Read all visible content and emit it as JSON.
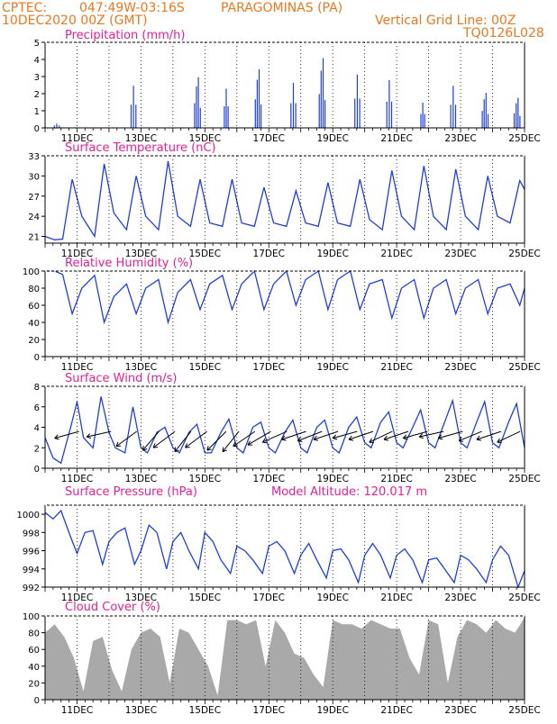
{
  "header": {
    "source": "CPTEC:",
    "coords": "047:49W-03:16S",
    "station": "PARAGOMINAS (PA)",
    "init": "10DEC2020 00Z (GMT)",
    "grid_note": "Vertical Grid Line: 00Z",
    "code": "TQ0126L028"
  },
  "colors": {
    "header": "#e87820",
    "title": "#e0209a",
    "series": "#1f3fd8",
    "cloud": "#a9a9a9",
    "arrow": "#000000"
  },
  "model_altitude": "Model Altitude: 120.017 m",
  "x_ticks": [
    "11DEC",
    "13DEC",
    "15DEC",
    "17DEC",
    "19DEC",
    "21DEC",
    "23DEC",
    "25DEC"
  ],
  "chart_data": [
    {
      "type": "bar",
      "title": "Precipitation (mm/h)",
      "ylim": [
        0,
        5
      ],
      "yticks": [
        "0",
        "1",
        "2",
        "3",
        "4",
        "5"
      ],
      "x_start_day": 10,
      "x_end_day": 25,
      "events": [
        {
          "day": 10.35,
          "peak": 0.3,
          "width": 0.15
        },
        {
          "day": 12.75,
          "peak": 3.0,
          "width": 0.15
        },
        {
          "day": 14.75,
          "peak": 3.2,
          "width": 0.18
        },
        {
          "day": 15.65,
          "peak": 2.8,
          "width": 0.12
        },
        {
          "day": 16.65,
          "peak": 3.7,
          "width": 0.18
        },
        {
          "day": 17.75,
          "peak": 3.2,
          "width": 0.15
        },
        {
          "day": 18.65,
          "peak": 4.4,
          "width": 0.18
        },
        {
          "day": 19.75,
          "peak": 3.8,
          "width": 0.15
        },
        {
          "day": 20.75,
          "peak": 3.4,
          "width": 0.15
        },
        {
          "day": 21.8,
          "peak": 1.8,
          "width": 0.12
        },
        {
          "day": 22.75,
          "peak": 3.0,
          "width": 0.15
        },
        {
          "day": 23.75,
          "peak": 2.2,
          "width": 0.18
        },
        {
          "day": 24.75,
          "peak": 1.9,
          "width": 0.18
        }
      ]
    },
    {
      "type": "line",
      "title": "Surface Temperature (nC)",
      "ylim": [
        20,
        33
      ],
      "yticks": [
        "21",
        "24",
        "27",
        "30",
        "33"
      ],
      "x": [
        10.0,
        10.3,
        10.55,
        10.85,
        11.15,
        11.55,
        11.85,
        12.15,
        12.55,
        12.85,
        13.15,
        13.55,
        13.85,
        14.15,
        14.55,
        14.85,
        15.15,
        15.55,
        15.85,
        16.15,
        16.55,
        16.85,
        17.15,
        17.55,
        17.85,
        18.15,
        18.55,
        18.85,
        19.15,
        19.55,
        19.85,
        20.15,
        20.55,
        20.85,
        21.15,
        21.55,
        21.85,
        22.15,
        22.55,
        22.85,
        23.15,
        23.55,
        23.85,
        24.15,
        24.55,
        24.85,
        25.0
      ],
      "values": [
        21.0,
        20.5,
        20.6,
        29.5,
        24.0,
        21.0,
        31.8,
        24.5,
        22.0,
        30.0,
        24.0,
        22.0,
        32.2,
        24.0,
        22.5,
        29.5,
        23.0,
        22.5,
        29.5,
        23.0,
        22.5,
        28.3,
        23.0,
        22.5,
        27.8,
        23.0,
        22.5,
        29.0,
        23.0,
        22.5,
        29.5,
        23.5,
        22.0,
        30.8,
        24.0,
        22.0,
        31.5,
        24.0,
        22.0,
        31.0,
        24.0,
        22.0,
        30.0,
        24.0,
        23.0,
        29.3,
        28.0
      ]
    },
    {
      "type": "line",
      "title": "Relative Humidity (%)",
      "ylim": [
        0,
        100
      ],
      "yticks": [
        "0",
        "20",
        "40",
        "60",
        "80",
        "100"
      ],
      "x": [
        10.0,
        10.3,
        10.55,
        10.85,
        11.15,
        11.55,
        11.85,
        12.15,
        12.55,
        12.85,
        13.15,
        13.55,
        13.85,
        14.15,
        14.55,
        14.85,
        15.15,
        15.55,
        15.85,
        16.15,
        16.55,
        16.85,
        17.15,
        17.55,
        17.85,
        18.15,
        18.55,
        18.85,
        19.15,
        19.55,
        19.85,
        20.15,
        20.55,
        20.85,
        21.15,
        21.55,
        21.85,
        22.15,
        22.55,
        22.85,
        23.15,
        23.55,
        23.85,
        24.15,
        24.55,
        24.85,
        25.0
      ],
      "values": [
        100,
        100,
        96,
        50,
        80,
        95,
        40,
        70,
        85,
        50,
        80,
        90,
        40,
        75,
        90,
        55,
        85,
        95,
        55,
        85,
        100,
        55,
        85,
        100,
        60,
        90,
        100,
        55,
        90,
        100,
        55,
        85,
        90,
        45,
        80,
        90,
        45,
        80,
        90,
        50,
        80,
        90,
        50,
        80,
        85,
        60,
        80
      ]
    },
    {
      "type": "line",
      "title": "Surface Wind (m/s)",
      "ylim": [
        0,
        8
      ],
      "yticks": [
        "0",
        "2",
        "4",
        "6",
        "8"
      ],
      "x": [
        10.0,
        10.25,
        10.5,
        10.8,
        11.0,
        11.2,
        11.5,
        11.75,
        12.0,
        12.2,
        12.5,
        12.75,
        13.0,
        13.2,
        13.5,
        13.75,
        14.0,
        14.2,
        14.5,
        14.75,
        15.0,
        15.2,
        15.5,
        15.75,
        16.0,
        16.2,
        16.5,
        16.75,
        17.0,
        17.2,
        17.5,
        17.75,
        18.0,
        18.2,
        18.5,
        18.75,
        19.0,
        19.2,
        19.5,
        19.75,
        20.0,
        20.2,
        20.5,
        20.75,
        21.0,
        21.2,
        21.5,
        21.75,
        22.0,
        22.2,
        22.5,
        22.75,
        23.0,
        23.2,
        23.5,
        23.75,
        24.0,
        24.2,
        24.5,
        24.75,
        25.0
      ],
      "values": [
        3.0,
        1.0,
        0.5,
        4.0,
        6.5,
        3.0,
        2.0,
        7.0,
        3.5,
        2.0,
        1.5,
        6.0,
        2.0,
        1.5,
        3.5,
        4.0,
        2.0,
        1.5,
        3.5,
        4.3,
        1.5,
        1.5,
        3.5,
        4.8,
        2.0,
        1.5,
        4.0,
        4.5,
        2.0,
        1.5,
        3.5,
        4.7,
        2.0,
        1.5,
        4.0,
        4.7,
        2.0,
        1.5,
        4.0,
        5.0,
        2.5,
        2.0,
        4.5,
        5.5,
        2.5,
        2.0,
        4.0,
        5.7,
        2.5,
        2.0,
        4.5,
        6.6,
        2.5,
        2.0,
        4.5,
        6.5,
        2.5,
        2.0,
        4.5,
        6.3,
        2.0
      ],
      "vectors": [
        {
          "day": 10.5,
          "dx": -0.9,
          "dy": 0.25
        },
        {
          "day": 11.5,
          "dx": -0.9,
          "dy": 0.2
        },
        {
          "day": 12.3,
          "dx": -0.75,
          "dy": 0.55
        },
        {
          "day": 13.0,
          "dx": -0.6,
          "dy": 0.7
        },
        {
          "day": 13.5,
          "dx": -0.8,
          "dy": 0.6
        },
        {
          "day": 14.0,
          "dx": -0.6,
          "dy": 0.75
        },
        {
          "day": 14.5,
          "dx": -0.8,
          "dy": 0.6
        },
        {
          "day": 15.1,
          "dx": -0.7,
          "dy": 0.7
        },
        {
          "day": 15.5,
          "dx": -0.6,
          "dy": 0.75
        },
        {
          "day": 16.0,
          "dx": -0.8,
          "dy": 0.55
        },
        {
          "day": 16.5,
          "dx": -0.85,
          "dy": 0.5
        },
        {
          "day": 17.0,
          "dx": -0.9,
          "dy": 0.4
        },
        {
          "day": 17.6,
          "dx": -0.9,
          "dy": 0.3
        },
        {
          "day": 18.1,
          "dx": -0.9,
          "dy": 0.35
        },
        {
          "day": 18.6,
          "dx": -0.9,
          "dy": 0.3
        },
        {
          "day": 19.2,
          "dx": -0.9,
          "dy": 0.25
        },
        {
          "day": 19.7,
          "dx": -0.9,
          "dy": 0.3
        },
        {
          "day": 20.3,
          "dx": -0.85,
          "dy": 0.4
        },
        {
          "day": 20.8,
          "dx": -0.9,
          "dy": 0.3
        },
        {
          "day": 21.4,
          "dx": -0.9,
          "dy": 0.25
        },
        {
          "day": 21.9,
          "dx": -0.9,
          "dy": 0.2
        },
        {
          "day": 22.5,
          "dx": -0.9,
          "dy": 0.25
        },
        {
          "day": 23.1,
          "dx": -0.85,
          "dy": 0.35
        },
        {
          "day": 23.7,
          "dx": -0.9,
          "dy": 0.3
        },
        {
          "day": 24.3,
          "dx": -0.85,
          "dy": 0.4
        }
      ]
    },
    {
      "type": "line",
      "title": "Surface Pressure (hPa)",
      "ylim": [
        992,
        1001
      ],
      "yticks": [
        "992",
        "994",
        "996",
        "998",
        "1000"
      ],
      "x": [
        10.0,
        10.25,
        10.5,
        10.8,
        11.0,
        11.25,
        11.5,
        11.8,
        12.0,
        12.25,
        12.5,
        12.8,
        13.0,
        13.25,
        13.5,
        13.8,
        14.0,
        14.25,
        14.5,
        14.8,
        15.0,
        15.25,
        15.5,
        15.8,
        16.0,
        16.25,
        16.5,
        16.8,
        17.0,
        17.25,
        17.5,
        17.8,
        18.0,
        18.25,
        18.5,
        18.8,
        19.0,
        19.25,
        19.5,
        19.8,
        20.0,
        20.25,
        20.5,
        20.8,
        21.0,
        21.25,
        21.5,
        21.8,
        22.0,
        22.25,
        22.5,
        22.8,
        23.0,
        23.25,
        23.5,
        23.8,
        24.0,
        24.25,
        24.5,
        24.8,
        25.0
      ],
      "values": [
        1000.2,
        999.5,
        1000.4,
        997.5,
        995.7,
        998.0,
        998.2,
        994.5,
        997.0,
        998.0,
        998.5,
        994.5,
        996.0,
        998.8,
        998.0,
        994.0,
        997.0,
        998.0,
        996.0,
        994.0,
        998.0,
        997.0,
        995.0,
        993.5,
        996.5,
        996.0,
        995.0,
        993.5,
        996.5,
        997.0,
        996.0,
        993.5,
        995.5,
        996.8,
        995.0,
        993.0,
        996.0,
        996.2,
        995.0,
        992.5,
        995.5,
        996.8,
        995.5,
        993.0,
        995.5,
        996.2,
        995.0,
        992.5,
        995.0,
        995.2,
        994.0,
        992.5,
        995.5,
        995.0,
        994.0,
        992.5,
        995.0,
        996.5,
        995.5,
        992.0,
        993.8
      ]
    },
    {
      "type": "bar",
      "title": "Cloud Cover (%)",
      "ylim": [
        0,
        100
      ],
      "yticks": [
        "0",
        "20",
        "40",
        "60",
        "80",
        "100"
      ],
      "x": [
        10.0,
        10.3,
        10.6,
        10.9,
        11.2,
        11.5,
        11.8,
        12.1,
        12.4,
        12.7,
        13.0,
        13.3,
        13.6,
        13.9,
        14.2,
        14.5,
        14.8,
        15.1,
        15.4,
        15.7,
        16.0,
        16.3,
        16.6,
        16.9,
        17.2,
        17.5,
        17.8,
        18.1,
        18.4,
        18.7,
        19.0,
        19.3,
        19.6,
        19.9,
        20.2,
        20.5,
        20.8,
        21.1,
        21.4,
        21.7,
        22.0,
        22.3,
        22.6,
        22.9,
        23.2,
        23.5,
        23.8,
        24.1,
        24.4,
        24.7,
        25.0
      ],
      "values": [
        80,
        90,
        75,
        50,
        10,
        70,
        75,
        35,
        10,
        60,
        80,
        85,
        75,
        20,
        85,
        80,
        60,
        40,
        5,
        95,
        95,
        90,
        95,
        40,
        95,
        80,
        55,
        50,
        30,
        15,
        95,
        90,
        90,
        85,
        95,
        90,
        85,
        85,
        50,
        30,
        95,
        90,
        20,
        75,
        95,
        90,
        80,
        95,
        85,
        80,
        98
      ]
    }
  ]
}
